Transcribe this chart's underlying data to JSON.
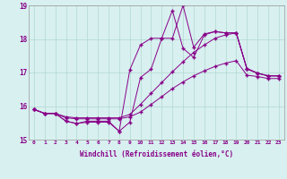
{
  "xlabel": "Windchill (Refroidissement éolien,°C)",
  "xlim": [
    -0.5,
    23.5
  ],
  "ylim": [
    15,
    19
  ],
  "xticks": [
    0,
    1,
    2,
    3,
    4,
    5,
    6,
    7,
    8,
    9,
    10,
    11,
    12,
    13,
    14,
    15,
    16,
    17,
    18,
    19,
    20,
    21,
    22,
    23
  ],
  "yticks": [
    15,
    16,
    17,
    18,
    19
  ],
  "background_color": "#d8f0f0",
  "line_color": "#880088",
  "grid_color": "#b0d8d0",
  "series": [
    {
      "x": [
        0,
        1,
        2,
        3,
        4,
        5,
        6,
        7,
        8,
        9,
        10,
        11,
        12,
        13,
        14,
        15,
        16,
        17,
        18,
        19,
        20,
        21,
        22,
        23
      ],
      "y": [
        15.9,
        15.78,
        15.78,
        15.65,
        15.62,
        15.62,
        15.62,
        15.62,
        15.62,
        15.68,
        15.82,
        16.05,
        16.28,
        16.52,
        16.72,
        16.9,
        17.05,
        17.18,
        17.28,
        17.35,
        16.92,
        16.88,
        16.82,
        16.82
      ]
    },
    {
      "x": [
        0,
        1,
        2,
        3,
        4,
        5,
        6,
        7,
        8,
        9,
        10,
        11,
        12,
        13,
        14,
        15,
        16,
        17,
        18,
        19,
        20,
        21,
        22,
        23
      ],
      "y": [
        15.9,
        15.78,
        15.78,
        15.68,
        15.65,
        15.65,
        15.65,
        15.65,
        15.65,
        15.75,
        16.05,
        16.38,
        16.7,
        17.02,
        17.32,
        17.6,
        17.82,
        18.02,
        18.12,
        18.18,
        17.1,
        16.98,
        16.9,
        16.9
      ]
    },
    {
      "x": [
        0,
        1,
        2,
        3,
        4,
        5,
        6,
        7,
        8,
        9,
        10,
        11,
        12,
        13,
        14,
        15,
        16,
        17,
        18,
        19,
        20,
        21,
        22,
        23
      ],
      "y": [
        15.9,
        15.78,
        15.78,
        15.55,
        15.48,
        15.55,
        15.55,
        15.55,
        15.25,
        15.52,
        16.85,
        17.1,
        18.02,
        18.02,
        19.0,
        17.75,
        18.15,
        18.22,
        18.18,
        18.18,
        17.12,
        16.98,
        16.9,
        16.9
      ]
    },
    {
      "x": [
        0,
        1,
        2,
        3,
        4,
        5,
        6,
        7,
        8,
        9,
        10,
        11,
        12,
        13,
        14,
        15,
        16,
        17,
        18,
        19,
        20,
        21,
        22,
        23
      ],
      "y": [
        15.9,
        15.78,
        15.78,
        15.55,
        15.48,
        15.52,
        15.52,
        15.52,
        15.25,
        17.08,
        17.82,
        18.02,
        18.02,
        18.85,
        17.72,
        17.45,
        18.12,
        18.22,
        18.18,
        18.18,
        17.12,
        16.98,
        16.9,
        16.9
      ]
    }
  ]
}
